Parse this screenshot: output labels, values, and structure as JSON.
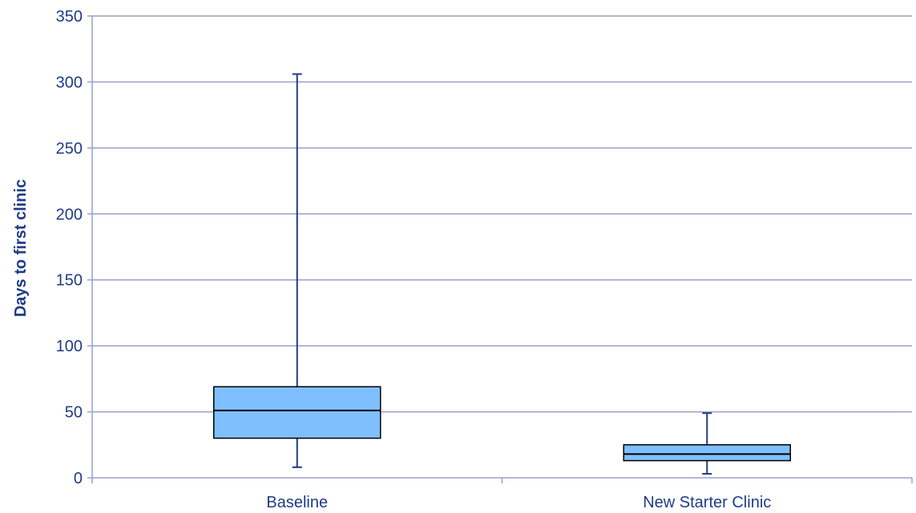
{
  "chart_data": {
    "type": "boxplot",
    "title": "",
    "xlabel": "",
    "ylabel": "Days to first clinic",
    "ylim": [
      0,
      350
    ],
    "yticks": [
      0,
      50,
      100,
      150,
      200,
      250,
      300,
      350
    ],
    "grid": true,
    "legend": "none",
    "categories": [
      "Baseline",
      "New Starter Clinic"
    ],
    "series": [
      {
        "category": "Baseline",
        "min": 8,
        "q1": 30,
        "median": 51,
        "q3": 69,
        "max": 306
      },
      {
        "category": "New Starter Clinic",
        "min": 3,
        "q1": 13,
        "median": 18,
        "q3": 25,
        "max": 49
      }
    ],
    "colors": {
      "box_fill": "#7fbfff",
      "box_stroke": "#000000",
      "whisker": "#1f3c88",
      "grid": "#9aa0c8",
      "text": "#1f3c88"
    }
  }
}
